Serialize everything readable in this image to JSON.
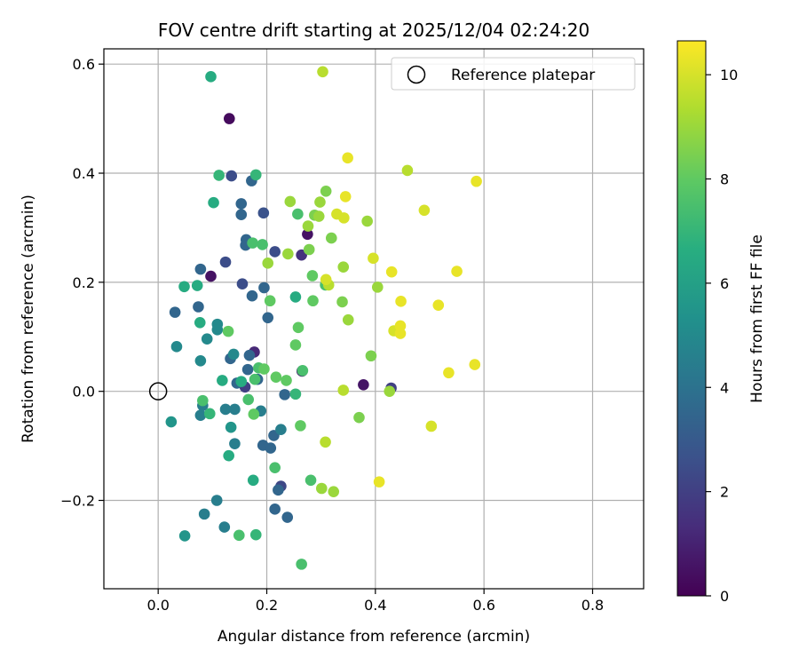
{
  "chart_data": {
    "type": "scatter",
    "title": "FOV centre drift starting at 2025/12/04 02:24:20",
    "xlabel": "Angular distance from reference (arcmin)",
    "ylabel": "Rotation from reference (arcmin)",
    "xlim": [
      -0.1,
      0.894
    ],
    "ylim": [
      -0.362,
      0.628
    ],
    "xticks": [
      0.0,
      0.2,
      0.4,
      0.6,
      0.8
    ],
    "xtick_labels": [
      "0.0",
      "0.2",
      "0.4",
      "0.6",
      "0.8"
    ],
    "yticks": [
      -0.2,
      0.0,
      0.2,
      0.4,
      0.6
    ],
    "ytick_labels": [
      "−0.2",
      "0.0",
      "0.2",
      "0.4",
      "0.6"
    ],
    "grid": true,
    "legend": {
      "position": "top-right",
      "label": "Reference platepar"
    },
    "reference_point": {
      "x": 0.0,
      "y": 0.0
    },
    "colorbar": {
      "label": "Hours from first FF file",
      "range": [
        0,
        10.65
      ],
      "ticks": [
        0,
        2,
        4,
        6,
        8,
        10
      ],
      "tick_labels": [
        "0",
        "2",
        "4",
        "6",
        "8",
        "10"
      ],
      "colormap": "viridis"
    },
    "points": [
      {
        "x": 0.131,
        "y": 0.5,
        "h": 0.3
      },
      {
        "x": 0.378,
        "y": 0.012,
        "h": 0.6
      },
      {
        "x": 0.275,
        "y": 0.288,
        "h": 0.5
      },
      {
        "x": 0.097,
        "y": 0.211,
        "h": 0.5
      },
      {
        "x": 0.177,
        "y": 0.072,
        "h": 1.2
      },
      {
        "x": 0.265,
        "y": 0.037,
        "h": 0.9
      },
      {
        "x": 0.135,
        "y": 0.395,
        "h": 2.5
      },
      {
        "x": 0.194,
        "y": 0.327,
        "h": 2.7
      },
      {
        "x": 0.124,
        "y": 0.237,
        "h": 2.5
      },
      {
        "x": 0.264,
        "y": 0.25,
        "h": 1.5
      },
      {
        "x": 0.215,
        "y": 0.256,
        "h": 2.5
      },
      {
        "x": 0.155,
        "y": 0.197,
        "h": 2.5
      },
      {
        "x": 0.16,
        "y": 0.008,
        "h": 2.0
      },
      {
        "x": 0.226,
        "y": -0.174,
        "h": 2.3
      },
      {
        "x": 0.429,
        "y": 0.006,
        "h": 2.0
      },
      {
        "x": 0.172,
        "y": 0.386,
        "h": 3.5
      },
      {
        "x": 0.078,
        "y": 0.224,
        "h": 3.5
      },
      {
        "x": 0.153,
        "y": 0.344,
        "h": 3.5
      },
      {
        "x": 0.153,
        "y": 0.324,
        "h": 3.5
      },
      {
        "x": 0.162,
        "y": 0.278,
        "h": 3.5
      },
      {
        "x": 0.161,
        "y": 0.268,
        "h": 3.5
      },
      {
        "x": 0.031,
        "y": 0.145,
        "h": 3.5
      },
      {
        "x": 0.074,
        "y": 0.155,
        "h": 3.5
      },
      {
        "x": 0.173,
        "y": 0.175,
        "h": 3.5
      },
      {
        "x": 0.195,
        "y": 0.19,
        "h": 3.5
      },
      {
        "x": 0.202,
        "y": 0.135,
        "h": 3.5
      },
      {
        "x": 0.133,
        "y": 0.06,
        "h": 3.5
      },
      {
        "x": 0.168,
        "y": 0.066,
        "h": 3.5
      },
      {
        "x": 0.165,
        "y": 0.04,
        "h": 3.5
      },
      {
        "x": 0.145,
        "y": 0.015,
        "h": 3.5
      },
      {
        "x": 0.183,
        "y": 0.022,
        "h": 3.5
      },
      {
        "x": 0.233,
        "y": -0.006,
        "h": 3.5
      },
      {
        "x": 0.193,
        "y": -0.099,
        "h": 3.5
      },
      {
        "x": 0.207,
        "y": -0.104,
        "h": 3.5
      },
      {
        "x": 0.213,
        "y": -0.081,
        "h": 3.5
      },
      {
        "x": 0.221,
        "y": -0.181,
        "h": 3.5
      },
      {
        "x": 0.215,
        "y": -0.216,
        "h": 3.5
      },
      {
        "x": 0.238,
        "y": -0.231,
        "h": 3.5
      },
      {
        "x": 0.108,
        "y": -0.2,
        "h": 4.5
      },
      {
        "x": 0.141,
        "y": -0.096,
        "h": 4.5
      },
      {
        "x": 0.082,
        "y": -0.026,
        "h": 4.5
      },
      {
        "x": 0.078,
        "y": -0.044,
        "h": 4.5
      },
      {
        "x": 0.124,
        "y": -0.033,
        "h": 4.5
      },
      {
        "x": 0.141,
        "y": -0.033,
        "h": 4.5
      },
      {
        "x": 0.122,
        "y": -0.249,
        "h": 4.5
      },
      {
        "x": 0.085,
        "y": -0.225,
        "h": 4.5
      },
      {
        "x": 0.189,
        "y": -0.036,
        "h": 4.5
      },
      {
        "x": 0.226,
        "y": -0.07,
        "h": 4.5
      },
      {
        "x": 0.134,
        "y": -0.066,
        "h": 5.5
      },
      {
        "x": 0.09,
        "y": 0.096,
        "h": 5.0
      },
      {
        "x": 0.109,
        "y": 0.123,
        "h": 5.0
      },
      {
        "x": 0.109,
        "y": 0.113,
        "h": 5.0
      },
      {
        "x": 0.139,
        "y": 0.068,
        "h": 5.0
      },
      {
        "x": 0.078,
        "y": 0.056,
        "h": 5.0
      },
      {
        "x": 0.034,
        "y": 0.082,
        "h": 5.0
      },
      {
        "x": 0.049,
        "y": -0.265,
        "h": 5.5
      },
      {
        "x": 0.024,
        "y": -0.056,
        "h": 5.5
      },
      {
        "x": 0.102,
        "y": 0.346,
        "h": 6.5
      },
      {
        "x": 0.097,
        "y": 0.577,
        "h": 6.5
      },
      {
        "x": 0.072,
        "y": 0.194,
        "h": 6.5
      },
      {
        "x": 0.077,
        "y": 0.126,
        "h": 6.5
      },
      {
        "x": 0.048,
        "y": 0.192,
        "h": 6.5
      },
      {
        "x": 0.118,
        "y": 0.02,
        "h": 6.5
      },
      {
        "x": 0.153,
        "y": 0.018,
        "h": 6.5
      },
      {
        "x": 0.13,
        "y": -0.118,
        "h": 6.5
      },
      {
        "x": 0.175,
        "y": -0.163,
        "h": 6.5
      },
      {
        "x": 0.253,
        "y": 0.173,
        "h": 6.5
      },
      {
        "x": 0.18,
        "y": 0.397,
        "h": 7.0
      },
      {
        "x": 0.112,
        "y": 0.396,
        "h": 7.0
      },
      {
        "x": 0.18,
        "y": -0.263,
        "h": 7.0
      },
      {
        "x": 0.095,
        "y": -0.041,
        "h": 7.0
      },
      {
        "x": 0.253,
        "y": -0.005,
        "h": 7.0
      },
      {
        "x": 0.215,
        "y": -0.14,
        "h": 7.5
      },
      {
        "x": 0.149,
        "y": -0.264,
        "h": 7.5
      },
      {
        "x": 0.264,
        "y": -0.317,
        "h": 7.5
      },
      {
        "x": 0.192,
        "y": 0.269,
        "h": 7.5
      },
      {
        "x": 0.174,
        "y": 0.272,
        "h": 7.5
      },
      {
        "x": 0.257,
        "y": 0.325,
        "h": 7.5
      },
      {
        "x": 0.185,
        "y": 0.043,
        "h": 7.5
      },
      {
        "x": 0.178,
        "y": 0.022,
        "h": 7.5
      },
      {
        "x": 0.166,
        "y": -0.015,
        "h": 7.5
      },
      {
        "x": 0.308,
        "y": 0.195,
        "h": 7.5
      },
      {
        "x": 0.266,
        "y": 0.038,
        "h": 7.5
      },
      {
        "x": 0.082,
        "y": -0.017,
        "h": 7.5
      },
      {
        "x": 0.281,
        "y": -0.163,
        "h": 7.5
      },
      {
        "x": 0.129,
        "y": 0.11,
        "h": 8.0
      },
      {
        "x": 0.195,
        "y": 0.041,
        "h": 8.0
      },
      {
        "x": 0.217,
        "y": 0.026,
        "h": 8.0
      },
      {
        "x": 0.236,
        "y": 0.02,
        "h": 8.0
      },
      {
        "x": 0.176,
        "y": -0.042,
        "h": 8.0
      },
      {
        "x": 0.262,
        "y": -0.063,
        "h": 8.0
      },
      {
        "x": 0.258,
        "y": 0.117,
        "h": 8.0
      },
      {
        "x": 0.253,
        "y": 0.085,
        "h": 8.0
      },
      {
        "x": 0.206,
        "y": 0.166,
        "h": 8.0
      },
      {
        "x": 0.285,
        "y": 0.166,
        "h": 8.0
      },
      {
        "x": 0.284,
        "y": 0.212,
        "h": 8.0
      },
      {
        "x": 0.309,
        "y": 0.367,
        "h": 8.5
      },
      {
        "x": 0.288,
        "y": 0.323,
        "h": 8.5
      },
      {
        "x": 0.319,
        "y": 0.281,
        "h": 8.5
      },
      {
        "x": 0.278,
        "y": 0.26,
        "h": 8.5
      },
      {
        "x": 0.339,
        "y": 0.164,
        "h": 8.5
      },
      {
        "x": 0.392,
        "y": 0.065,
        "h": 8.5
      },
      {
        "x": 0.37,
        "y": -0.048,
        "h": 8.5
      },
      {
        "x": 0.202,
        "y": 0.235,
        "h": 9.0
      },
      {
        "x": 0.239,
        "y": 0.252,
        "h": 9.0
      },
      {
        "x": 0.243,
        "y": 0.348,
        "h": 9.0
      },
      {
        "x": 0.298,
        "y": 0.347,
        "h": 9.0
      },
      {
        "x": 0.296,
        "y": 0.321,
        "h": 9.0
      },
      {
        "x": 0.276,
        "y": 0.303,
        "h": 9.0
      },
      {
        "x": 0.341,
        "y": 0.228,
        "h": 9.0
      },
      {
        "x": 0.385,
        "y": 0.312,
        "h": 9.0
      },
      {
        "x": 0.404,
        "y": 0.191,
        "h": 9.0
      },
      {
        "x": 0.35,
        "y": 0.131,
        "h": 9.0
      },
      {
        "x": 0.301,
        "y": -0.178,
        "h": 9.0
      },
      {
        "x": 0.323,
        "y": -0.184,
        "h": 9.0
      },
      {
        "x": 0.426,
        "y": 0.0,
        "h": 9.0
      },
      {
        "x": 0.341,
        "y": 0.002,
        "h": 9.5
      },
      {
        "x": 0.303,
        "y": 0.586,
        "h": 9.5
      },
      {
        "x": 0.459,
        "y": 0.405,
        "h": 9.5
      },
      {
        "x": 0.314,
        "y": 0.195,
        "h": 9.5
      },
      {
        "x": 0.308,
        "y": -0.093,
        "h": 9.5
      },
      {
        "x": 0.434,
        "y": 0.111,
        "h": 10.0
      },
      {
        "x": 0.329,
        "y": 0.325,
        "h": 10.0
      },
      {
        "x": 0.342,
        "y": 0.318,
        "h": 10.0
      },
      {
        "x": 0.309,
        "y": 0.205,
        "h": 10.0
      },
      {
        "x": 0.396,
        "y": 0.244,
        "h": 10.0
      },
      {
        "x": 0.49,
        "y": 0.332,
        "h": 10.0
      },
      {
        "x": 0.503,
        "y": -0.064,
        "h": 10.0
      },
      {
        "x": 0.349,
        "y": 0.428,
        "h": 10.3
      },
      {
        "x": 0.345,
        "y": 0.357,
        "h": 10.3
      },
      {
        "x": 0.43,
        "y": 0.219,
        "h": 10.3
      },
      {
        "x": 0.447,
        "y": 0.165,
        "h": 10.3
      },
      {
        "x": 0.446,
        "y": 0.12,
        "h": 10.3
      },
      {
        "x": 0.446,
        "y": 0.106,
        "h": 10.3
      },
      {
        "x": 0.516,
        "y": 0.158,
        "h": 10.3
      },
      {
        "x": 0.55,
        "y": 0.22,
        "h": 10.3
      },
      {
        "x": 0.586,
        "y": 0.385,
        "h": 10.3
      },
      {
        "x": 0.535,
        "y": 0.034,
        "h": 10.3
      },
      {
        "x": 0.583,
        "y": 0.049,
        "h": 10.3
      },
      {
        "x": 0.407,
        "y": -0.166,
        "h": 10.3
      }
    ]
  }
}
